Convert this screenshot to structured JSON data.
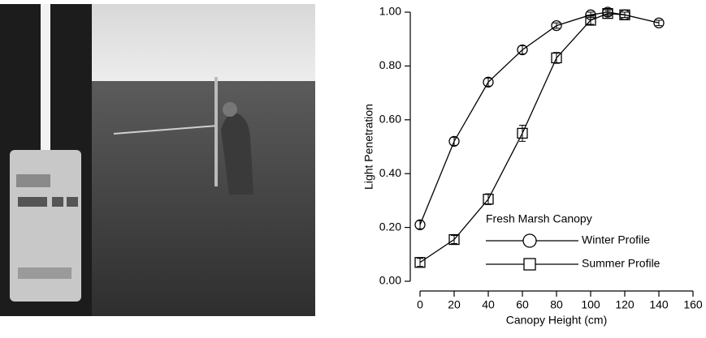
{
  "chart_data": {
    "type": "line",
    "xlabel": "Canopy Height (cm)",
    "ylabel": "Light Penetration",
    "xlim": [
      0,
      160
    ],
    "xticks": [
      0,
      20,
      40,
      60,
      80,
      100,
      120,
      140,
      160
    ],
    "ylim": [
      0,
      1
    ],
    "yticks": [
      {
        "value": 0,
        "label": "0.00"
      },
      {
        "value": 0.2,
        "label": "0.20"
      },
      {
        "value": 0.4,
        "label": "0.40"
      },
      {
        "value": 0.6,
        "label": "0.60"
      },
      {
        "value": 0.8,
        "label": "0.80"
      },
      {
        "value": 1,
        "label": "1.00"
      }
    ],
    "legend_title": "Fresh Marsh Canopy",
    "legend": "lower right",
    "series": [
      {
        "name": "Winter Profile",
        "color": "#000000",
        "marker": "circle",
        "x": [
          0,
          20,
          40,
          60,
          80,
          100,
          110,
          120,
          140
        ],
        "values": [
          0.21,
          0.52,
          0.74,
          0.86,
          0.95,
          0.99,
          1.0,
          0.99,
          0.96
        ],
        "errors": [
          0.015,
          0.015,
          0.015,
          0.015,
          0.01,
          0.01,
          0.01,
          0.01,
          0.01
        ]
      },
      {
        "name": "Summer Profile",
        "color": "#000000",
        "marker": "square",
        "x": [
          0,
          20,
          40,
          60,
          80,
          100,
          110,
          120
        ],
        "values": [
          0.07,
          0.155,
          0.305,
          0.55,
          0.83,
          0.97,
          0.995,
          0.99
        ],
        "errors": [
          0.015,
          0.015,
          0.02,
          0.03,
          0.02,
          0.015,
          0.01,
          0.01
        ]
      }
    ]
  }
}
